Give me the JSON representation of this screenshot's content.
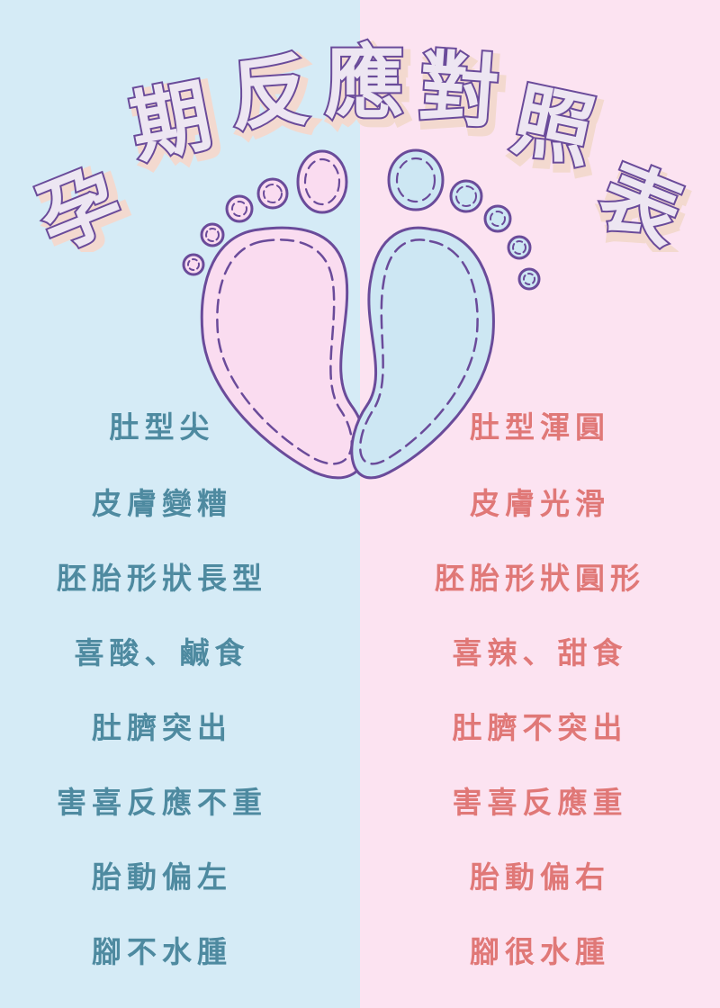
{
  "title": {
    "chars": [
      "孕",
      "期",
      "反",
      "應",
      "對",
      "照",
      "表"
    ],
    "fill": "#ede6f2",
    "stroke": "#6a4b9a",
    "shadow": "#f3d9cf"
  },
  "colors": {
    "left_background": "#d5ebf6",
    "right_background": "#fce3f1",
    "left_text": "#4e8aa0",
    "right_text": "#e07877",
    "outline": "#6a4b9a"
  },
  "illustration": {
    "icon": "baby-footprints-icon"
  },
  "left_column": {
    "items": [
      "肚型尖",
      "皮膚變糟",
      "胚胎形狀長型",
      "喜酸、鹹食",
      "肚臍突出",
      "害喜反應不重",
      "胎動偏左",
      "腳不水腫"
    ]
  },
  "right_column": {
    "items": [
      "肚型渾圓",
      "皮膚光滑",
      "胚胎形狀圓形",
      "喜辣、甜食",
      "肚臍不突出",
      "害喜反應重",
      "胎動偏右",
      "腳很水腫"
    ]
  }
}
